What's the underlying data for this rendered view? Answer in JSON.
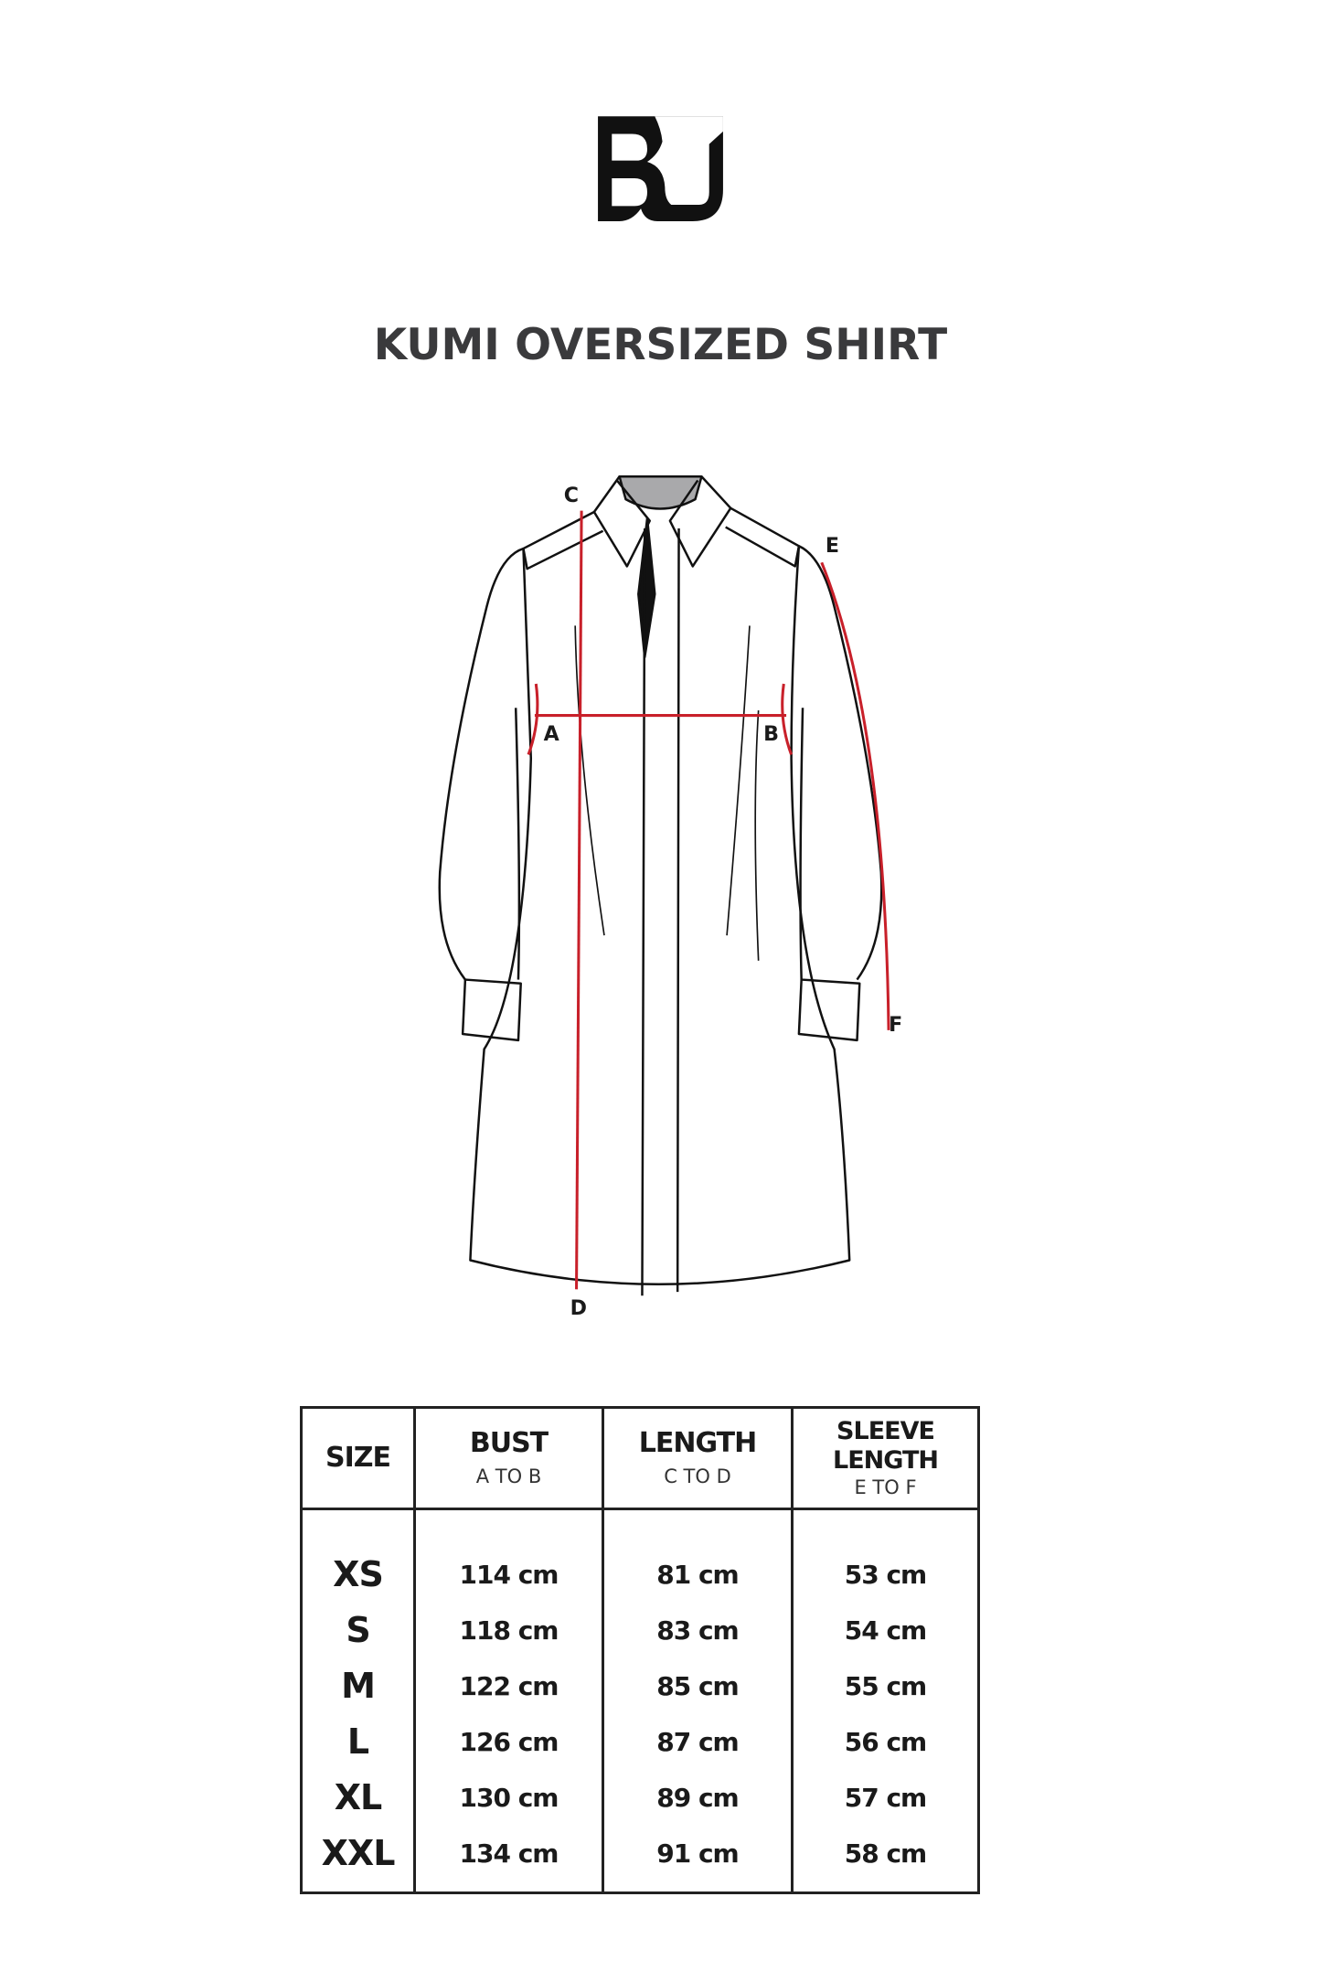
{
  "brand": {
    "logo_text": "BJ"
  },
  "title": "KUMI OVERSIZED SHIRT",
  "diagram": {
    "labels": {
      "A": "A",
      "B": "B",
      "C": "C",
      "D": "D",
      "E": "E",
      "F": "F"
    },
    "measure_color": "#c8202a"
  },
  "table": {
    "headers": [
      {
        "title": "SIZE",
        "sub": ""
      },
      {
        "title": "BUST",
        "sub": "A TO B"
      },
      {
        "title": "LENGTH",
        "sub": "C TO D"
      },
      {
        "title": "SLEEVE LENGTH",
        "sub": "E TO F"
      }
    ],
    "sizes": [
      "XS",
      "S",
      "M",
      "L",
      "XL",
      "XXL"
    ],
    "bust": [
      "114 cm",
      "118 cm",
      "122 cm",
      "126 cm",
      "130 cm",
      "134 cm"
    ],
    "length": [
      "81 cm",
      "83 cm",
      "85 cm",
      "87 cm",
      "89 cm",
      "91 cm"
    ],
    "sleeve": [
      "53 cm",
      "54 cm",
      "55 cm",
      "56 cm",
      "57 cm",
      "58 cm"
    ]
  }
}
